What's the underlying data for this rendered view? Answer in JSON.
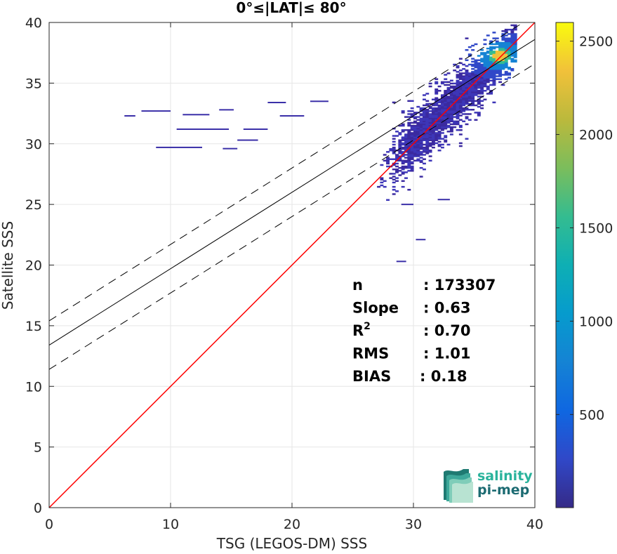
{
  "chart_data": {
    "type": "heatmap",
    "title": "0°≤|LAT|≤ 80°",
    "xlabel": "TSG (LEGOS-DM) SSS",
    "ylabel": "Satellite SSS",
    "xlim": [
      0,
      40
    ],
    "ylim": [
      0,
      40
    ],
    "x_ticks": [
      "0",
      "10",
      "20",
      "30",
      "40"
    ],
    "y_ticks": [
      "0",
      "5",
      "10",
      "15",
      "20",
      "25",
      "30",
      "35",
      "40"
    ],
    "grid": true,
    "colorbar": {
      "range": [
        1,
        2600
      ],
      "ticks": [
        "500",
        "1000",
        "1500",
        "2000",
        "2500"
      ],
      "colormap": "parula"
    },
    "lines": [
      {
        "role": "one-to-one",
        "color": "#ff0000",
        "style": "solid",
        "slope": 1.0,
        "intercept": 0.0
      },
      {
        "role": "regression",
        "color": "#000000",
        "style": "solid",
        "slope": 0.63,
        "intercept": 13.4
      },
      {
        "role": "regression-upper",
        "color": "#000000",
        "style": "dashed",
        "slope": 0.63,
        "intercept": 15.4
      },
      {
        "role": "regression-lower",
        "color": "#000000",
        "style": "dashed",
        "slope": 0.63,
        "intercept": 11.4
      }
    ],
    "stats": [
      {
        "label": "n",
        "value": ": 173307"
      },
      {
        "label": "Slope",
        "value": ": 0.63"
      },
      {
        "label": "R",
        "sup": "2",
        "value": ": 0.70"
      },
      {
        "label": "RMS",
        "value": ": 1.01"
      },
      {
        "label": "BIAS",
        "value": ": 0.18"
      }
    ],
    "density_core": {
      "x_center": 34.5,
      "y_center": 34.6,
      "peak_x": 37.0,
      "peak_y": 37.2,
      "max_count": 2600
    },
    "outlier_segments": [
      {
        "x0": 6.2,
        "x1": 7.1,
        "y": 32.3
      },
      {
        "x0": 7.6,
        "x1": 10.0,
        "y": 32.7
      },
      {
        "x0": 11.0,
        "x1": 13.2,
        "y": 32.4
      },
      {
        "x0": 14.0,
        "x1": 15.2,
        "y": 32.8
      },
      {
        "x0": 10.5,
        "x1": 14.8,
        "y": 31.2
      },
      {
        "x0": 16.0,
        "x1": 18.0,
        "y": 31.2
      },
      {
        "x0": 8.8,
        "x1": 12.6,
        "y": 29.7
      },
      {
        "x0": 14.3,
        "x1": 15.5,
        "y": 29.6
      },
      {
        "x0": 18.0,
        "x1": 19.5,
        "y": 33.4
      },
      {
        "x0": 15.5,
        "x1": 17.2,
        "y": 30.3
      },
      {
        "x0": 19.0,
        "x1": 21.0,
        "y": 32.3
      },
      {
        "x0": 21.5,
        "x1": 23.0,
        "y": 33.5
      },
      {
        "x0": 30.2,
        "x1": 31.0,
        "y": 22.1
      },
      {
        "x0": 28.6,
        "x1": 29.4,
        "y": 20.3
      },
      {
        "x0": 29.0,
        "x1": 30.0,
        "y": 25.0
      },
      {
        "x0": 32.0,
        "x1": 33.0,
        "y": 25.4
      }
    ],
    "logo": {
      "line1": "salinity",
      "line2": "pi-mep"
    }
  }
}
